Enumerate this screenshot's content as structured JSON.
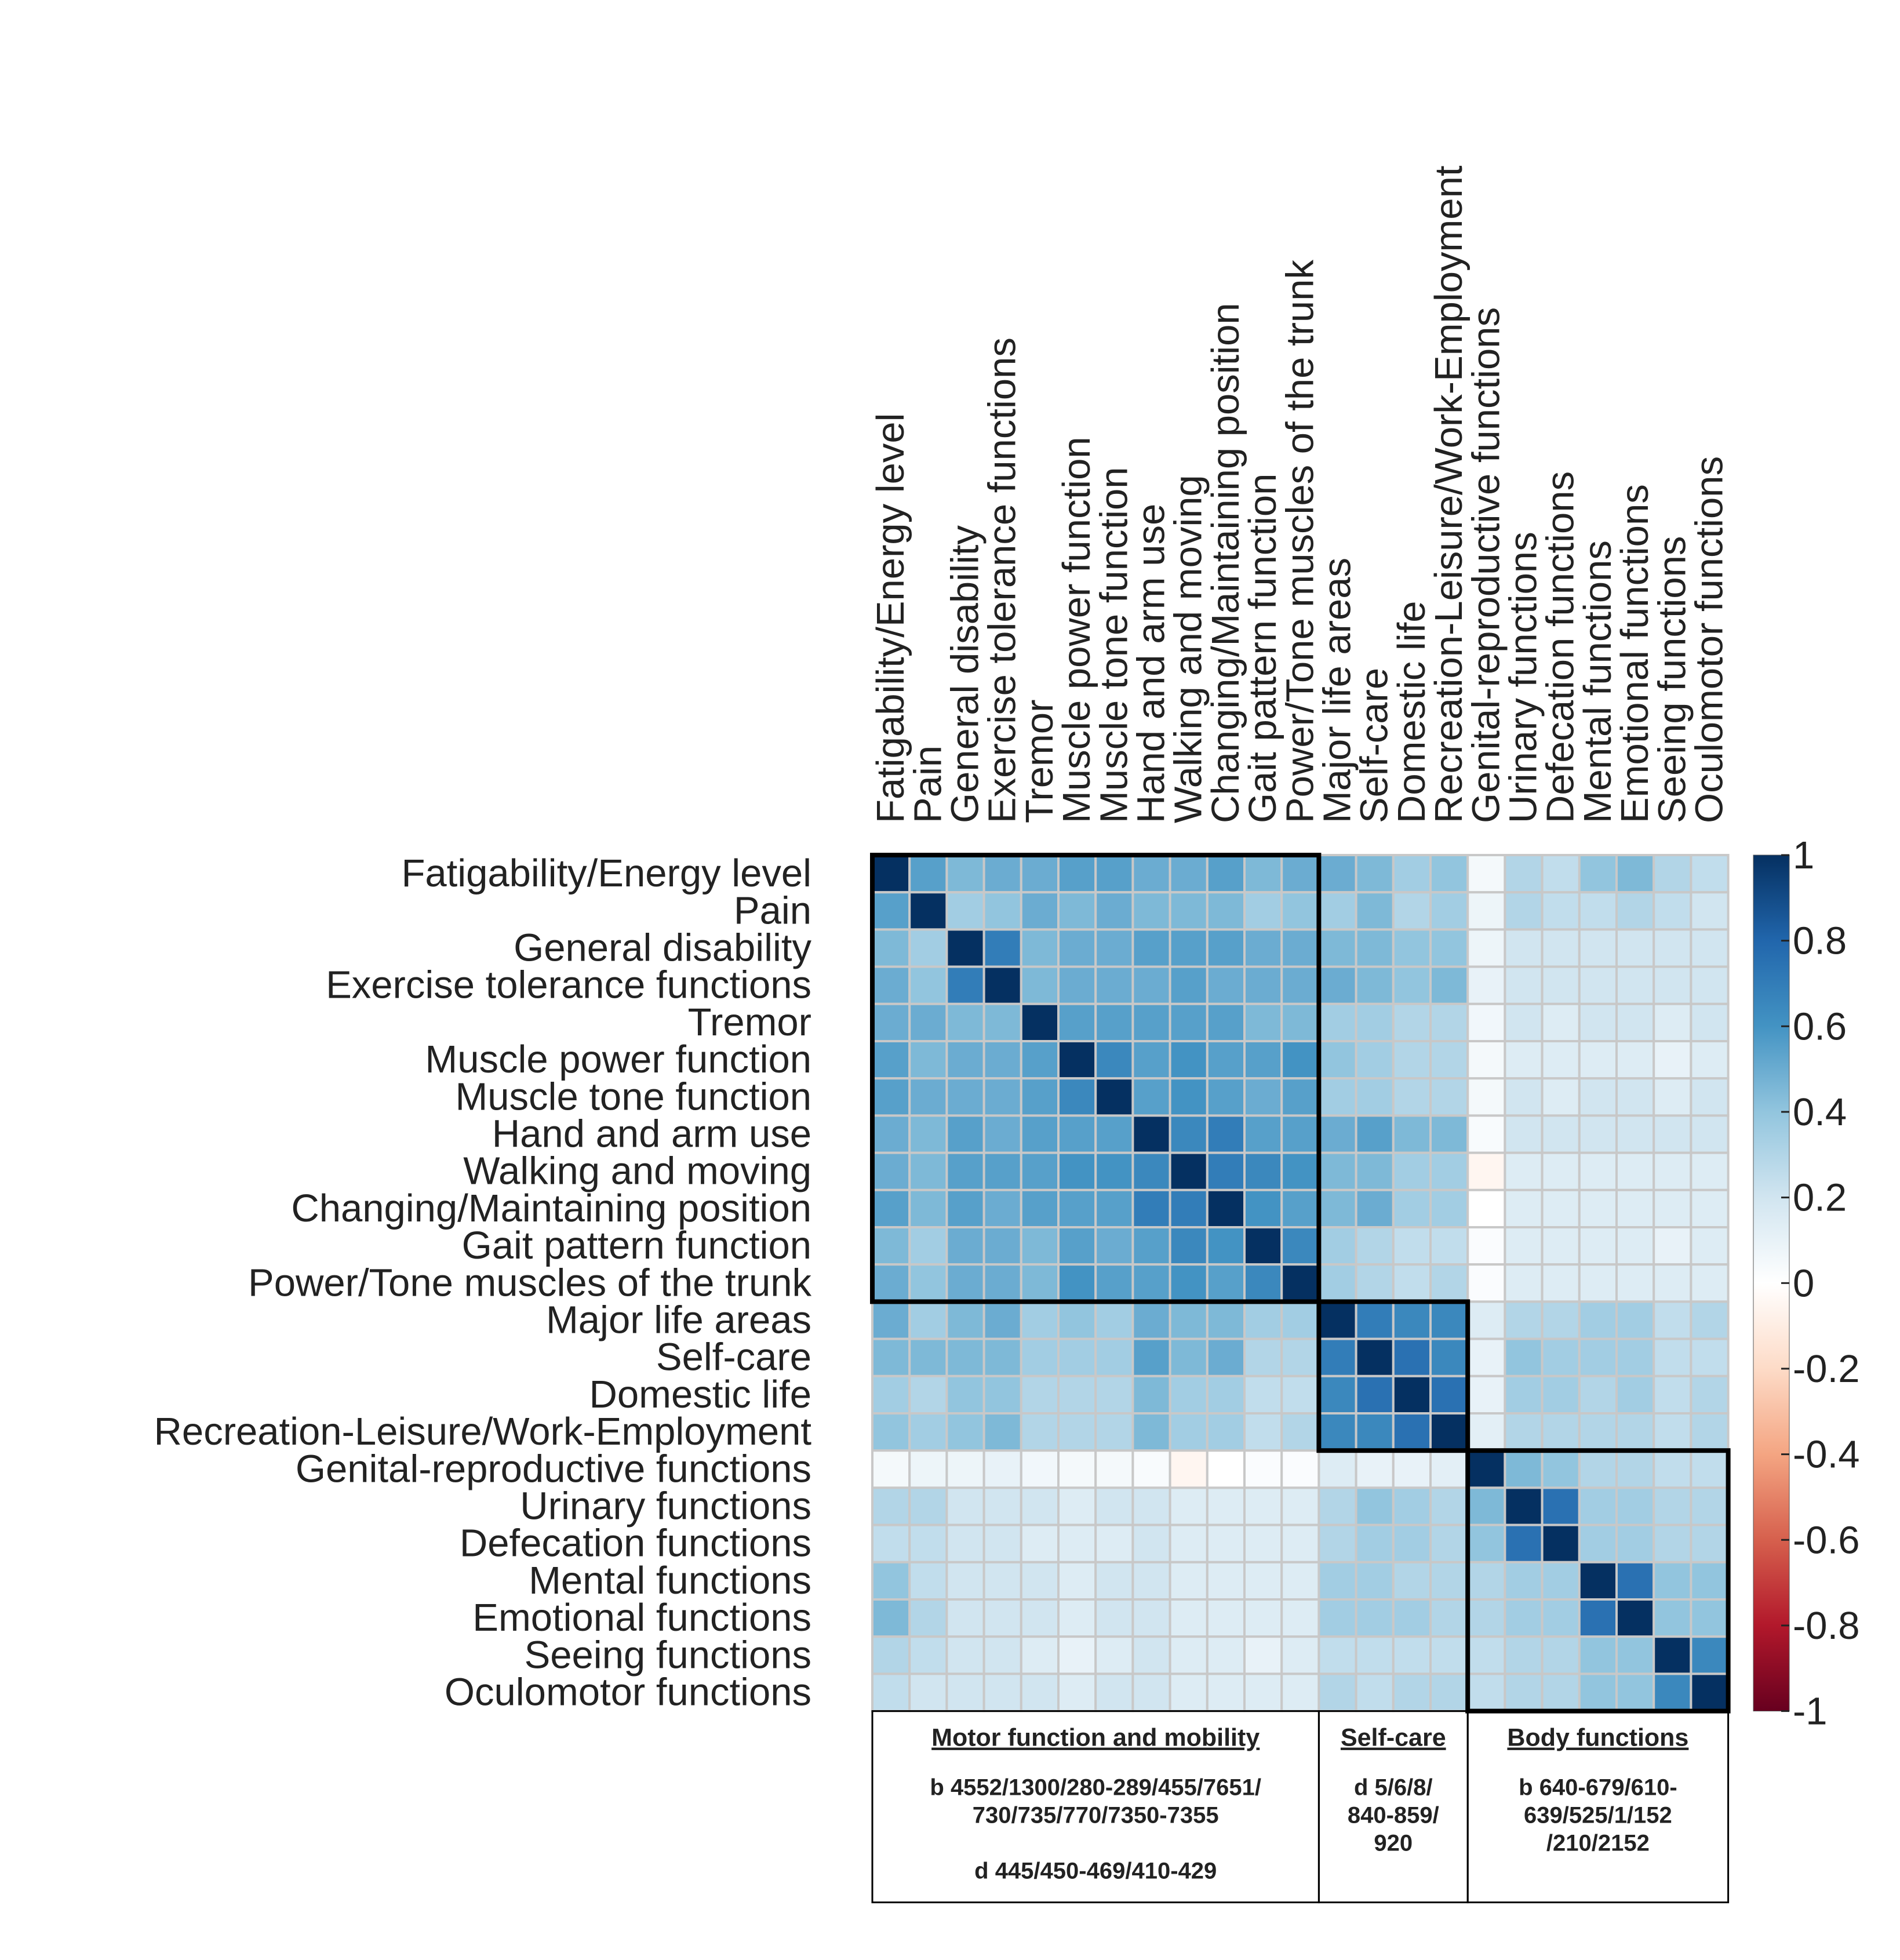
{
  "chart_data": {
    "type": "heatmap",
    "title": "",
    "variables": [
      "Fatigability/Energy level",
      "Pain",
      "General disability",
      "Exercise tolerance functions",
      "Tremor",
      "Muscle power function",
      "Muscle tone function",
      "Hand and arm use",
      "Walking and moving",
      "Changing/Maintaining position",
      "Gait pattern function",
      "Power/Tone muscles of the trunk",
      "Major life areas",
      "Self-care",
      "Domestic life",
      "Recreation-Leisure/Work-Employment",
      "Genital-reproductive functions",
      "Urinary functions",
      "Defecation functions",
      "Mental functions",
      "Emotional functions",
      "Seeing functions",
      "Oculomotor functions"
    ],
    "matrix": [
      [
        1.0,
        0.55,
        0.45,
        0.5,
        0.5,
        0.55,
        0.55,
        0.5,
        0.5,
        0.55,
        0.45,
        0.5,
        0.5,
        0.45,
        0.35,
        0.4,
        0.05,
        0.3,
        0.25,
        0.4,
        0.45,
        0.3,
        0.25
      ],
      [
        0.55,
        1.0,
        0.35,
        0.4,
        0.5,
        0.45,
        0.5,
        0.45,
        0.45,
        0.45,
        0.35,
        0.4,
        0.35,
        0.45,
        0.3,
        0.35,
        0.08,
        0.3,
        0.25,
        0.25,
        0.3,
        0.25,
        0.2
      ],
      [
        0.45,
        0.35,
        1.0,
        0.7,
        0.45,
        0.5,
        0.5,
        0.55,
        0.55,
        0.55,
        0.5,
        0.5,
        0.45,
        0.45,
        0.4,
        0.4,
        0.08,
        0.2,
        0.2,
        0.2,
        0.2,
        0.2,
        0.2
      ],
      [
        0.5,
        0.4,
        0.7,
        1.0,
        0.45,
        0.5,
        0.5,
        0.5,
        0.55,
        0.5,
        0.5,
        0.5,
        0.5,
        0.45,
        0.4,
        0.45,
        0.1,
        0.2,
        0.2,
        0.2,
        0.2,
        0.2,
        0.2
      ],
      [
        0.5,
        0.5,
        0.45,
        0.45,
        1.0,
        0.55,
        0.55,
        0.55,
        0.55,
        0.55,
        0.45,
        0.45,
        0.35,
        0.35,
        0.3,
        0.3,
        0.06,
        0.2,
        0.15,
        0.2,
        0.2,
        0.15,
        0.2
      ],
      [
        0.55,
        0.45,
        0.5,
        0.5,
        0.55,
        1.0,
        0.65,
        0.55,
        0.6,
        0.55,
        0.55,
        0.6,
        0.4,
        0.35,
        0.3,
        0.3,
        0.05,
        0.15,
        0.15,
        0.15,
        0.15,
        0.1,
        0.15
      ],
      [
        0.55,
        0.5,
        0.5,
        0.5,
        0.55,
        0.65,
        1.0,
        0.55,
        0.6,
        0.55,
        0.5,
        0.55,
        0.35,
        0.35,
        0.3,
        0.3,
        0.05,
        0.2,
        0.15,
        0.2,
        0.2,
        0.15,
        0.2
      ],
      [
        0.5,
        0.45,
        0.55,
        0.5,
        0.55,
        0.55,
        0.55,
        1.0,
        0.65,
        0.7,
        0.55,
        0.55,
        0.5,
        0.55,
        0.45,
        0.45,
        0.03,
        0.2,
        0.2,
        0.2,
        0.2,
        0.2,
        0.2
      ],
      [
        0.5,
        0.45,
        0.55,
        0.55,
        0.55,
        0.6,
        0.6,
        0.65,
        1.0,
        0.7,
        0.65,
        0.6,
        0.45,
        0.45,
        0.35,
        0.35,
        -0.05,
        0.15,
        0.15,
        0.15,
        0.15,
        0.15,
        0.15
      ],
      [
        0.55,
        0.45,
        0.55,
        0.5,
        0.55,
        0.55,
        0.55,
        0.7,
        0.7,
        1.0,
        0.6,
        0.55,
        0.45,
        0.5,
        0.35,
        0.35,
        0.0,
        0.15,
        0.15,
        0.15,
        0.15,
        0.15,
        0.15
      ],
      [
        0.45,
        0.35,
        0.5,
        0.5,
        0.45,
        0.55,
        0.5,
        0.55,
        0.65,
        0.6,
        1.0,
        0.65,
        0.35,
        0.3,
        0.25,
        0.25,
        0.02,
        0.15,
        0.15,
        0.15,
        0.15,
        0.1,
        0.15
      ],
      [
        0.5,
        0.4,
        0.5,
        0.5,
        0.45,
        0.6,
        0.55,
        0.55,
        0.6,
        0.55,
        0.65,
        1.0,
        0.35,
        0.3,
        0.25,
        0.3,
        0.02,
        0.15,
        0.15,
        0.15,
        0.15,
        0.15,
        0.15
      ],
      [
        0.5,
        0.35,
        0.45,
        0.5,
        0.35,
        0.4,
        0.35,
        0.5,
        0.45,
        0.45,
        0.35,
        0.35,
        1.0,
        0.7,
        0.65,
        0.65,
        0.15,
        0.3,
        0.3,
        0.35,
        0.35,
        0.25,
        0.3
      ],
      [
        0.45,
        0.45,
        0.45,
        0.45,
        0.35,
        0.35,
        0.35,
        0.55,
        0.45,
        0.5,
        0.3,
        0.3,
        0.7,
        1.0,
        0.75,
        0.65,
        0.1,
        0.4,
        0.35,
        0.35,
        0.35,
        0.25,
        0.25
      ],
      [
        0.35,
        0.3,
        0.4,
        0.4,
        0.3,
        0.3,
        0.3,
        0.45,
        0.35,
        0.35,
        0.25,
        0.25,
        0.65,
        0.75,
        1.0,
        0.75,
        0.1,
        0.35,
        0.35,
        0.3,
        0.35,
        0.25,
        0.3
      ],
      [
        0.4,
        0.35,
        0.4,
        0.45,
        0.3,
        0.3,
        0.3,
        0.45,
        0.35,
        0.35,
        0.25,
        0.3,
        0.65,
        0.65,
        0.75,
        1.0,
        0.12,
        0.3,
        0.3,
        0.3,
        0.3,
        0.25,
        0.3
      ],
      [
        0.05,
        0.08,
        0.08,
        0.1,
        0.06,
        0.05,
        0.05,
        0.03,
        -0.05,
        0.0,
        0.02,
        0.02,
        0.15,
        0.1,
        0.1,
        0.12,
        1.0,
        0.45,
        0.4,
        0.3,
        0.3,
        0.25,
        0.25
      ],
      [
        0.3,
        0.3,
        0.2,
        0.2,
        0.2,
        0.15,
        0.2,
        0.2,
        0.15,
        0.15,
        0.15,
        0.15,
        0.3,
        0.4,
        0.35,
        0.3,
        0.45,
        1.0,
        0.75,
        0.35,
        0.35,
        0.3,
        0.3
      ],
      [
        0.25,
        0.25,
        0.2,
        0.2,
        0.15,
        0.15,
        0.15,
        0.2,
        0.15,
        0.15,
        0.15,
        0.15,
        0.3,
        0.35,
        0.35,
        0.3,
        0.4,
        0.75,
        1.0,
        0.35,
        0.35,
        0.3,
        0.3
      ],
      [
        0.4,
        0.25,
        0.2,
        0.2,
        0.2,
        0.15,
        0.2,
        0.2,
        0.15,
        0.15,
        0.15,
        0.15,
        0.35,
        0.35,
        0.3,
        0.3,
        0.3,
        0.35,
        0.35,
        1.0,
        0.75,
        0.4,
        0.4
      ],
      [
        0.45,
        0.3,
        0.2,
        0.2,
        0.2,
        0.15,
        0.2,
        0.2,
        0.15,
        0.15,
        0.15,
        0.15,
        0.35,
        0.35,
        0.35,
        0.3,
        0.3,
        0.35,
        0.35,
        0.75,
        1.0,
        0.4,
        0.4
      ],
      [
        0.3,
        0.25,
        0.2,
        0.2,
        0.15,
        0.1,
        0.15,
        0.2,
        0.15,
        0.15,
        0.1,
        0.15,
        0.25,
        0.25,
        0.25,
        0.25,
        0.25,
        0.3,
        0.3,
        0.4,
        0.4,
        1.0,
        0.65
      ],
      [
        0.25,
        0.2,
        0.2,
        0.2,
        0.2,
        0.15,
        0.2,
        0.2,
        0.15,
        0.15,
        0.15,
        0.15,
        0.3,
        0.25,
        0.3,
        0.3,
        0.25,
        0.3,
        0.3,
        0.4,
        0.4,
        0.65,
        1.0
      ]
    ],
    "color_scale": {
      "min": -1,
      "max": 1,
      "ticks": [
        "1",
        "0.8",
        "0.6",
        "0.4",
        "0.2",
        "0",
        "-0.2",
        "-0.4",
        "-0.6",
        "-0.8",
        "-1"
      ],
      "colors": [
        "#67001F",
        "#B2182B",
        "#D6604D",
        "#F4A582",
        "#FDDBC7",
        "#FFFFFF",
        "#D1E5F0",
        "#92C5DE",
        "#4393C3",
        "#2166AC",
        "#053061"
      ]
    },
    "groups": [
      {
        "name": "Motor function and mobility",
        "start": 0,
        "end": 11,
        "codes": [
          "b 4552/1300/280-289/455/7651/",
          "730/735/770/7350-7355",
          "",
          "d 445/450-469/410-429"
        ]
      },
      {
        "name": "Self-care",
        "start": 12,
        "end": 15,
        "codes": [
          "d 5/6/8/",
          "840-859/",
          "920"
        ]
      },
      {
        "name": "Body functions",
        "start": 16,
        "end": 22,
        "codes": [
          "b 640-679/610-",
          "639/525/1/152",
          "/210/2152"
        ]
      }
    ],
    "grid_color": "#C8C8C8",
    "group_box_color": "#000000"
  }
}
